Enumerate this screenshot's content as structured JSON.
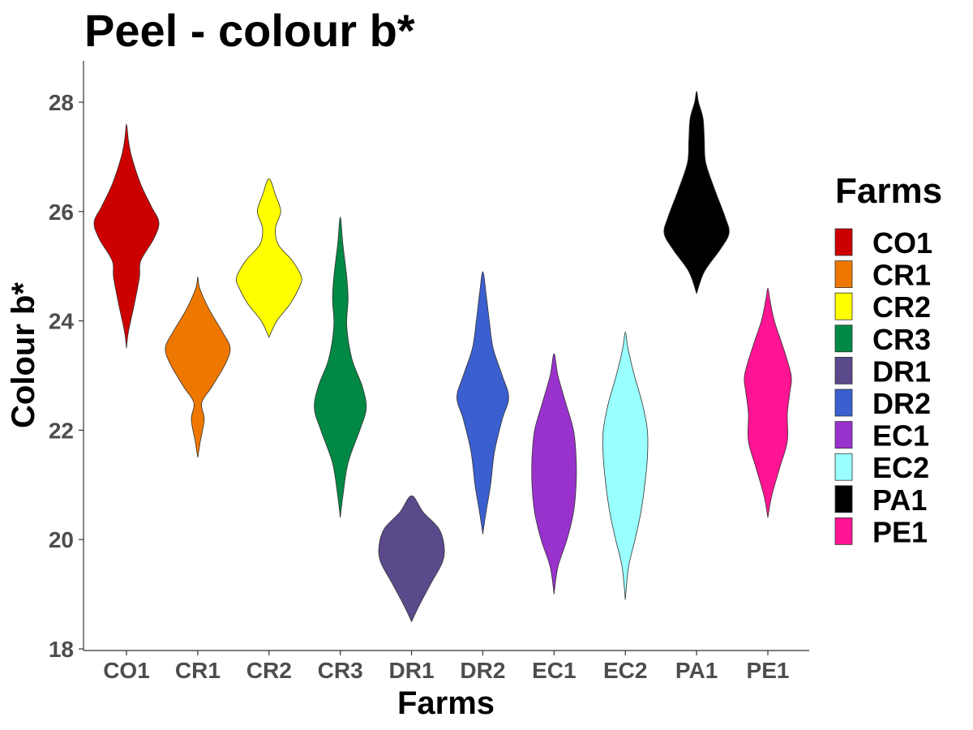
{
  "chart_data": {
    "type": "violin",
    "title": "Peel - colour b*",
    "xlabel": "Farms",
    "ylabel": "Colour b*",
    "ylim": [
      18,
      28.7
    ],
    "yticks": [
      18,
      20,
      22,
      24,
      26,
      28
    ],
    "categories": [
      "CO1",
      "CR1",
      "CR2",
      "CR3",
      "DR1",
      "DR2",
      "EC1",
      "EC2",
      "PA1",
      "PE1"
    ],
    "grid": false,
    "legend": {
      "title": "Farms",
      "placement": "right",
      "items": [
        {
          "label": "CO1",
          "color": "#CC0000"
        },
        {
          "label": "CR1",
          "color": "#EE7700"
        },
        {
          "label": "CR2",
          "color": "#FFFF00"
        },
        {
          "label": "CR3",
          "color": "#008844"
        },
        {
          "label": "DR1",
          "color": "#5A4A8C"
        },
        {
          "label": "DR2",
          "color": "#3B5FCF"
        },
        {
          "label": "EC1",
          "color": "#9932CC"
        },
        {
          "label": "EC2",
          "color": "#99FFFF"
        },
        {
          "label": "PA1",
          "color": "#000000"
        },
        {
          "label": "PE1",
          "color": "#FF1493"
        }
      ]
    },
    "series": [
      {
        "category": "CO1",
        "color": "#CC0000",
        "min": 23.5,
        "max": 27.6,
        "density": [
          [
            23.5,
            0
          ],
          [
            23.8,
            0.03
          ],
          [
            24.3,
            0.12
          ],
          [
            24.8,
            0.2
          ],
          [
            25.1,
            0.22
          ],
          [
            25.5,
            0.42
          ],
          [
            25.8,
            0.5
          ],
          [
            26.1,
            0.38
          ],
          [
            26.5,
            0.22
          ],
          [
            27.0,
            0.08
          ],
          [
            27.3,
            0.03
          ],
          [
            27.6,
            0
          ]
        ]
      },
      {
        "category": "CR1",
        "color": "#EE7700",
        "min": 21.5,
        "max": 24.8,
        "density": [
          [
            21.5,
            0
          ],
          [
            21.8,
            0.04
          ],
          [
            22.2,
            0.1
          ],
          [
            22.5,
            0.06
          ],
          [
            22.8,
            0.22
          ],
          [
            23.2,
            0.42
          ],
          [
            23.5,
            0.5
          ],
          [
            23.8,
            0.38
          ],
          [
            24.2,
            0.18
          ],
          [
            24.6,
            0.03
          ],
          [
            24.8,
            0
          ]
        ]
      },
      {
        "category": "CR2",
        "color": "#FFFF00",
        "min": 23.7,
        "max": 26.6,
        "density": [
          [
            23.7,
            0
          ],
          [
            24.0,
            0.12
          ],
          [
            24.3,
            0.32
          ],
          [
            24.6,
            0.46
          ],
          [
            24.8,
            0.5
          ],
          [
            25.1,
            0.36
          ],
          [
            25.4,
            0.14
          ],
          [
            25.7,
            0.1
          ],
          [
            26.0,
            0.18
          ],
          [
            26.3,
            0.1
          ],
          [
            26.6,
            0
          ]
        ]
      },
      {
        "category": "CR3",
        "color": "#008844",
        "min": 20.4,
        "max": 25.9,
        "density": [
          [
            20.4,
            0
          ],
          [
            20.8,
            0.04
          ],
          [
            21.4,
            0.12
          ],
          [
            22.0,
            0.3
          ],
          [
            22.4,
            0.4
          ],
          [
            22.8,
            0.34
          ],
          [
            23.3,
            0.18
          ],
          [
            23.9,
            0.1
          ],
          [
            24.4,
            0.12
          ],
          [
            24.8,
            0.1
          ],
          [
            25.4,
            0.04
          ],
          [
            25.9,
            0
          ]
        ]
      },
      {
        "category": "DR1",
        "color": "#5A4A8C",
        "min": 18.5,
        "max": 20.8,
        "density": [
          [
            18.5,
            0
          ],
          [
            18.8,
            0.12
          ],
          [
            19.2,
            0.3
          ],
          [
            19.6,
            0.48
          ],
          [
            19.9,
            0.5
          ],
          [
            20.2,
            0.42
          ],
          [
            20.5,
            0.18
          ],
          [
            20.8,
            0
          ]
        ]
      },
      {
        "category": "DR2",
        "color": "#3B5FCF",
        "min": 20.1,
        "max": 24.9,
        "density": [
          [
            20.1,
            0
          ],
          [
            20.5,
            0.05
          ],
          [
            21.0,
            0.12
          ],
          [
            21.6,
            0.18
          ],
          [
            22.2,
            0.3
          ],
          [
            22.6,
            0.4
          ],
          [
            23.0,
            0.3
          ],
          [
            23.5,
            0.16
          ],
          [
            24.0,
            0.1
          ],
          [
            24.5,
            0.05
          ],
          [
            24.9,
            0
          ]
        ]
      },
      {
        "category": "EC1",
        "color": "#9932CC",
        "min": 19.0,
        "max": 23.4,
        "density": [
          [
            19.0,
            0
          ],
          [
            19.5,
            0.06
          ],
          [
            20.0,
            0.2
          ],
          [
            20.5,
            0.3
          ],
          [
            21.0,
            0.34
          ],
          [
            21.5,
            0.34
          ],
          [
            22.0,
            0.3
          ],
          [
            22.5,
            0.18
          ],
          [
            23.0,
            0.06
          ],
          [
            23.4,
            0
          ]
        ]
      },
      {
        "category": "EC2",
        "color": "#99FFFF",
        "min": 18.9,
        "max": 23.8,
        "density": [
          [
            18.9,
            0
          ],
          [
            19.5,
            0.05
          ],
          [
            20.0,
            0.15
          ],
          [
            20.5,
            0.24
          ],
          [
            21.0,
            0.3
          ],
          [
            21.5,
            0.34
          ],
          [
            22.0,
            0.34
          ],
          [
            22.5,
            0.26
          ],
          [
            23.0,
            0.14
          ],
          [
            23.5,
            0.04
          ],
          [
            23.8,
            0
          ]
        ]
      },
      {
        "category": "PA1",
        "color": "#000000",
        "min": 24.5,
        "max": 28.2,
        "density": [
          [
            24.5,
            0
          ],
          [
            24.9,
            0.12
          ],
          [
            25.3,
            0.36
          ],
          [
            25.6,
            0.5
          ],
          [
            25.9,
            0.44
          ],
          [
            26.4,
            0.28
          ],
          [
            26.9,
            0.14
          ],
          [
            27.3,
            0.12
          ],
          [
            27.7,
            0.1
          ],
          [
            28.0,
            0.03
          ],
          [
            28.2,
            0
          ]
        ]
      },
      {
        "category": "PE1",
        "color": "#FF1493",
        "min": 20.4,
        "max": 24.6,
        "density": [
          [
            20.4,
            0
          ],
          [
            20.8,
            0.06
          ],
          [
            21.3,
            0.18
          ],
          [
            21.8,
            0.3
          ],
          [
            22.3,
            0.3
          ],
          [
            22.7,
            0.34
          ],
          [
            23.0,
            0.36
          ],
          [
            23.5,
            0.24
          ],
          [
            24.0,
            0.1
          ],
          [
            24.4,
            0.03
          ],
          [
            24.6,
            0
          ]
        ]
      }
    ]
  }
}
